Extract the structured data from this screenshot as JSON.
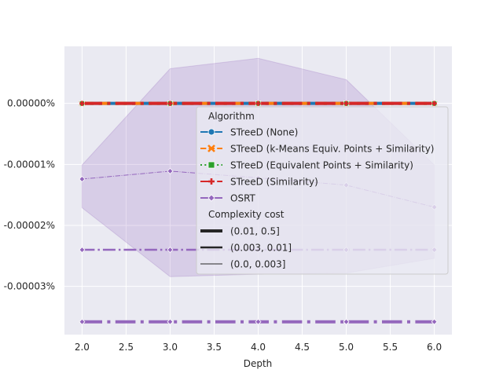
{
  "chart_data": {
    "type": "line",
    "xlabel": "Depth",
    "ylabel": "",
    "x": [
      2.0,
      3.0,
      4.0,
      5.0,
      6.0
    ],
    "xlim": [
      1.8,
      6.2
    ],
    "ylim": [
      -3.79e-05,
      9.36e-06
    ],
    "x_ticks": [
      2.0,
      2.5,
      3.0,
      3.5,
      4.0,
      4.5,
      5.0,
      5.5,
      6.0
    ],
    "x_tick_labels": [
      "2.0",
      "2.5",
      "3.0",
      "3.5",
      "4.0",
      "4.5",
      "5.0",
      "5.5",
      "6.0"
    ],
    "y_ticks": [
      0,
      -1e-05,
      -2e-05,
      -3e-05
    ],
    "y_tick_labels": [
      "0.00000%",
      "-0.00001%",
      "-0.00002%",
      "-0.00003%"
    ],
    "grid": true,
    "background": "#eaeaf2",
    "series": [
      {
        "algorithm": "OSRT",
        "complexity": "(0.01, 0.5)",
        "values": [
          -3.58e-05,
          -3.58e-05,
          -3.58e-05,
          -3.58e-05,
          -3.58e-05
        ],
        "color": "#9467bd",
        "marker": "diamond",
        "dash": "dashdot",
        "width": 4
      },
      {
        "algorithm": "OSRT",
        "complexity": "(0.003, 0.01]",
        "values": [
          -2.4e-05,
          -2.4e-05,
          -2.4e-05,
          -2.4e-05,
          -2.4e-05
        ],
        "color": "#9467bd",
        "marker": "diamond",
        "dash": "dashdot",
        "width": 2.5
      },
      {
        "algorithm": "OSRT",
        "complexity": "(0.0, 0.003]",
        "values": [
          -1.24e-05,
          -1.11e-05,
          -1.22e-05,
          -1.34e-05,
          -1.7e-05
        ],
        "color": "#9467bd",
        "marker": "diamond",
        "dash": "dashdot",
        "width": 1,
        "ci_lower": [
          -1.71e-05,
          -2.84e-05,
          -2.8e-05,
          -2.78e-05,
          -2.54e-05
        ],
        "ci_upper": [
          -1.01e-05,
          5.7e-06,
          7.4e-06,
          3.9e-06,
          -1.01e-05
        ]
      },
      {
        "algorithm": "STreeD (None)",
        "complexity": "(0.01, 0.5)",
        "values": [
          0,
          0,
          0,
          0,
          0
        ],
        "color": "#1f77b4",
        "marker": "circle",
        "dash": "solid",
        "width": 4
      },
      {
        "algorithm": "STreeD (k-Means Equiv. Points + Similarity)",
        "complexity": "(0.01, 0.5)",
        "values": [
          0,
          0,
          0,
          0,
          0
        ],
        "color": "#ff7f0e",
        "marker": "x",
        "dash": "dash",
        "width": 4
      },
      {
        "algorithm": "STreeD (Equivalent Points + Similarity)",
        "complexity": "(0.01, 0.5)",
        "values": [
          0,
          0,
          0,
          0,
          0
        ],
        "color": "#2ca02c",
        "marker": "square",
        "dash": "dot",
        "width": 4
      },
      {
        "algorithm": "STreeD (Similarity)",
        "complexity": "(0.01, 0.5)",
        "values": [
          0,
          0,
          0,
          0,
          0
        ],
        "color": "#d62728",
        "marker": "plus",
        "dash": "dashdot",
        "width": 4
      }
    ],
    "legend": {
      "placement": "center-right",
      "title_algorithm": "Algorithm",
      "algorithms": [
        {
          "label": "STreeD (None)",
          "color": "#1f77b4",
          "marker": "circle",
          "dash": "solid"
        },
        {
          "label": "STreeD (k-Means Equiv. Points + Similarity)",
          "color": "#ff7f0e",
          "marker": "x",
          "dash": "dash"
        },
        {
          "label": "STreeD (Equivalent Points + Similarity)",
          "color": "#2ca02c",
          "marker": "square",
          "dash": "dot"
        },
        {
          "label": "STreeD (Similarity)",
          "color": "#d62728",
          "marker": "plus",
          "dash": "dashdot"
        },
        {
          "label": "OSRT",
          "color": "#9467bd",
          "marker": "diamond",
          "dash": "solid"
        }
      ],
      "title_complexity": "Complexity cost",
      "complexities": [
        {
          "label": "(0.01, 0.5]",
          "width": 4
        },
        {
          "label": "(0.003, 0.01]",
          "width": 2.5
        },
        {
          "label": "(0.0, 0.003]",
          "width": 1
        }
      ]
    }
  }
}
